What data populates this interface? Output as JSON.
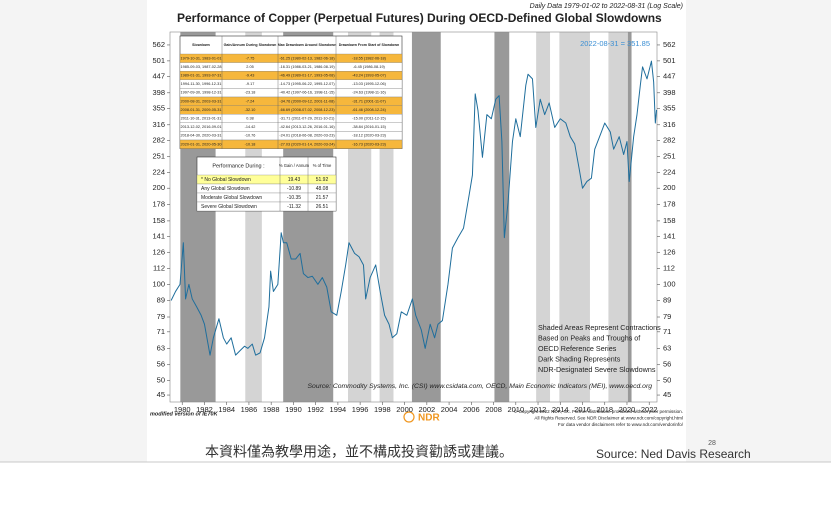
{
  "chart_data": {
    "type": "line",
    "title": "Performance of Copper (Perpetual Futures) During OECD-Defined Global Slowdowns",
    "subtitle": "Daily Data 1979-01-02 to 2022-08-31 (Log Scale)",
    "annotation": "2022-08-31 = 351.85",
    "log_scale": true,
    "color": "#1f6e9c",
    "xlim": [
      1978.9,
      2022.7
    ],
    "xticks": [
      1980,
      1982,
      1984,
      1986,
      1988,
      1990,
      1992,
      1994,
      1996,
      1998,
      2000,
      2002,
      2004,
      2006,
      2008,
      2010,
      2012,
      2014,
      2016,
      2018,
      2020,
      2022
    ],
    "ylim": [
      42.8,
      617
    ],
    "yticks": [
      45,
      50,
      56,
      63,
      71,
      79,
      89,
      100,
      112,
      126,
      141,
      158,
      178,
      200,
      224,
      251,
      282,
      316,
      355,
      398,
      447,
      501,
      562
    ],
    "x": [
      1979.0,
      1979.4,
      1979.8,
      1980.1,
      1980.3,
      1980.6,
      1980.9,
      1981.3,
      1981.7,
      1982.0,
      1982.5,
      1982.8,
      1983.3,
      1983.7,
      1984.0,
      1984.4,
      1984.8,
      1985.2,
      1985.6,
      1985.9,
      1986.3,
      1986.6,
      1987.0,
      1987.4,
      1987.8,
      1987.95,
      1988.2,
      1988.6,
      1988.9,
      1989.1,
      1989.4,
      1989.8,
      1990.2,
      1990.6,
      1990.9,
      1991.3,
      1991.7,
      1992.2,
      1992.6,
      1993.0,
      1993.4,
      1993.9,
      1994.3,
      1994.7,
      1995.0,
      1995.5,
      1995.9,
      1996.3,
      1996.5,
      1996.9,
      1997.4,
      1997.8,
      1998.2,
      1998.6,
      1998.9,
      1999.3,
      1999.7,
      2000.2,
      2000.7,
      2001.0,
      2001.5,
      2001.85,
      2002.3,
      2002.7,
      2003.0,
      2003.4,
      2003.9,
      2004.3,
      2004.8,
      2005.3,
      2005.8,
      2006.1,
      2006.35,
      2006.6,
      2007.0,
      2007.4,
      2007.8,
      2008.2,
      2008.5,
      2008.75,
      2008.97,
      2009.3,
      2009.7,
      2010.0,
      2010.4,
      2010.9,
      2011.1,
      2011.5,
      2011.8,
      2012.2,
      2012.6,
      2013.0,
      2013.5,
      2014.0,
      2014.5,
      2014.9,
      2015.3,
      2015.7,
      2016.0,
      2016.4,
      2016.8,
      2017.1,
      2017.7,
      2018.0,
      2018.5,
      2018.8,
      2019.3,
      2019.7,
      2020.0,
      2020.2,
      2020.6,
      2020.9,
      2021.2,
      2021.4,
      2021.8,
      2022.2,
      2022.4,
      2022.55,
      2022.66
    ],
    "values": [
      89,
      95,
      100,
      135,
      90,
      100,
      90,
      85,
      80,
      75,
      60,
      68,
      78,
      68,
      65,
      68,
      60,
      62,
      64,
      63,
      65,
      60,
      61,
      68,
      85,
      110,
      95,
      100,
      145,
      135,
      135,
      120,
      120,
      125,
      108,
      105,
      106,
      100,
      105,
      98,
      82,
      80,
      95,
      115,
      135,
      125,
      122,
      115,
      90,
      105,
      115,
      95,
      80,
      75,
      68,
      70,
      82,
      80,
      90,
      80,
      72,
      63,
      75,
      68,
      75,
      77,
      100,
      130,
      140,
      150,
      190,
      220,
      395,
      350,
      250,
      340,
      330,
      380,
      390,
      280,
      140,
      180,
      280,
      330,
      290,
      420,
      455,
      440,
      310,
      380,
      340,
      370,
      310,
      330,
      320,
      290,
      275,
      230,
      200,
      210,
      215,
      265,
      300,
      320,
      300,
      265,
      290,
      255,
      280,
      210,
      290,
      340,
      420,
      480,
      440,
      500,
      430,
      320,
      351.85
    ],
    "shading": [
      {
        "start": 1979.83,
        "end": 1983.0,
        "severe": true
      },
      {
        "start": 1985.67,
        "end": 1987.16,
        "severe": false
      },
      {
        "start": 1989.08,
        "end": 1993.58,
        "severe": true
      },
      {
        "start": 1994.91,
        "end": 1997.0,
        "severe": false
      },
      {
        "start": 1997.75,
        "end": 1999.0,
        "severe": false
      },
      {
        "start": 2000.66,
        "end": 2003.25,
        "severe": true
      },
      {
        "start": 2008.08,
        "end": 2009.41,
        "severe": true
      },
      {
        "start": 2011.83,
        "end": 2013.08,
        "severe": false
      },
      {
        "start": 2013.92,
        "end": 2016.67,
        "severe": false
      },
      {
        "start": 2018.33,
        "end": 2020.08,
        "severe": false
      },
      {
        "start": 2020.08,
        "end": 2020.41,
        "severe": true
      }
    ],
    "table": {
      "header": [
        "Slowdown",
        "Gain/Annum During Slowdown",
        "Max Drawdown Around Slowdown",
        "Drawdown From Start of Slowdown"
      ],
      "rows": [
        [
          "1979-10-31, 1983-01-01",
          "-7.75",
          "-61.25 (1980-02-13, 1982-06-18)",
          "-18.55 (1982-06-18)"
        ],
        [
          "1985-09-03, 1987-02-28",
          "2.05",
          "-16.31 (1986-03-21, 1986-08-19)",
          "-6.45 (1986-08-19)"
        ],
        [
          "1989-01-31, 1993-07-31",
          "-9.43",
          "-46.49 (1989-01-17, 1993-05-08)",
          "-43.24 (1993-05-07)"
        ],
        [
          "1994-11-30, 1996-12-31",
          "-9.17",
          "-14.73 (1995-06-22, 1995-12-07)",
          "-13.03 (1995-12-06)"
        ],
        [
          "1997-09-30, 1998-12-31",
          "-23.18",
          "-40.42 (1997-06-16, 1998-11-15)",
          "-24.63 (1998-11-16)"
        ],
        [
          "2000-08-31, 2003-03-31",
          "-7.24",
          "-34.76 (2000-09-12, 2001-11-08)",
          "-31.71 (2001-11-07)"
        ],
        [
          "2008-01-31, 2009-05-31",
          "-32.10",
          "-66.69 (2008-07-02, 2008-12-23)",
          "-61.46 (2008-12-24)"
        ],
        [
          "2011-10-31, 2013-01-31",
          "0.38",
          "-31.71 (2011-07-29, 2011-10-21)",
          "-15.00 (2011-12-15)"
        ],
        [
          "2013-12-02, 2016-09-01",
          "-14.42",
          "-42.64 (2013-12-26, 2016-01-16)",
          "-38.84 (2016-01-15)"
        ],
        [
          "2018-04-30, 2020-03-31",
          "-10.76",
          "-24.01 (2018-06-08, 2020-03-23)",
          "-18.12 (2020-03-23)"
        ],
        [
          "2020-01-31, 2020-05-30",
          "-10.18",
          "-27.03 (2020-01-14, 2020-03-24)",
          "-16.73 (2020-03-23)"
        ]
      ],
      "severe": [
        true,
        false,
        true,
        false,
        false,
        true,
        true,
        false,
        false,
        false,
        true
      ]
    },
    "summary_table": {
      "header": [
        "Performance During :",
        "% Gain / Annum",
        "% of Time"
      ],
      "rows": [
        [
          "* No Global Slowdown",
          "19.43",
          "51.92"
        ],
        [
          "Any Global Slowdown",
          "-10.89",
          "48.08"
        ],
        [
          "Moderate Global Slowdown",
          "-10.35",
          "21.57"
        ],
        [
          "Severe Global Slowdown",
          "-11.32",
          "26.51"
        ]
      ]
    },
    "notes": [
      "Shaded Areas Represent Contractions",
      "Based on Peaks and Troughs of",
      "OECD Reference Series",
      "Dark Shading Represents",
      "NDR-Designated Severe Slowdowns"
    ],
    "source": "Source:  Commodity Systems, Inc. (CSI) www.csidata.com, OECD, Main Economic Indicators (MEI), www.oecd.org",
    "footer_left": "modified version of IE70K",
    "logo": "NDR",
    "copyright": [
      "© Copyright 2022 NDR, Inc. Further distribution prohibited without prior permission.",
      "All Rights Reserved. See NDR Disclaimer at www.ndr.com/copyright.html",
      "For data vendor disclaimers refer to www.ndr.com/vendorinfo/"
    ]
  },
  "slide": {
    "disclaimer": "本資料僅為教學用途，並不構成投資勸誘或建議。",
    "source": "Source: Ned Davis Research",
    "page_number": "28"
  }
}
